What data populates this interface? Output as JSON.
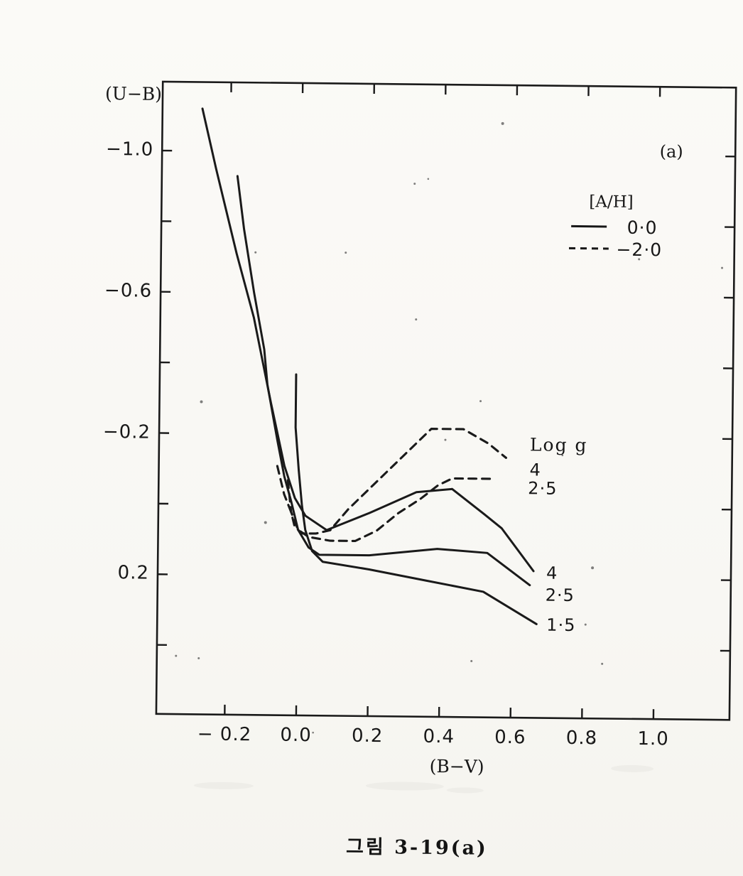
{
  "page": {
    "background": "#f8f7f3",
    "caption": "그림 3-19(a)"
  },
  "chart_data": {
    "type": "line",
    "description": "Scanned two-color diagram: (U-B) versus (B-V) model colors for metallicities [A/H]=0.0 (solid) and [A/H]=-2.0 (dashed) at surface gravities Log g = 4, 2.5, 1.5",
    "panel_label": "(a)",
    "colors": {
      "ink": "#1a1a1a",
      "paper": "#f8f7f3"
    },
    "x_axis": {
      "label": "(B−V)",
      "range": [
        -0.4,
        1.21
      ],
      "ticks": [
        {
          "value": -0.2,
          "label": "− 0.2"
        },
        {
          "value": 0.0,
          "label": "0.0"
        },
        {
          "value": 0.2,
          "label": "0.2"
        },
        {
          "value": 0.4,
          "label": "0.4"
        },
        {
          "value": 0.6,
          "label": "0.6"
        },
        {
          "value": 0.8,
          "label": "0.8"
        },
        {
          "value": 1.0,
          "label": "1.0"
        }
      ]
    },
    "y_axis": {
      "label": "(U−B)",
      "range": [
        -1.19,
        0.6
      ],
      "orientation": "negative-up",
      "ticks": [
        {
          "value": -1.0,
          "label": "−1.0"
        },
        {
          "value": -0.8,
          "label": ""
        },
        {
          "value": -0.6,
          "label": "−0.6"
        },
        {
          "value": -0.4,
          "label": ""
        },
        {
          "value": -0.2,
          "label": "−0.2"
        },
        {
          "value": 0.0,
          "label": ""
        },
        {
          "value": 0.2,
          "label": "0.2"
        },
        {
          "value": 0.4,
          "label": ""
        }
      ]
    },
    "legend": {
      "title": "[A/H]",
      "entries": [
        {
          "style": "solid",
          "label": "0·0",
          "value": 0.0
        },
        {
          "style": "dashed",
          "label": "−2·0",
          "value": -2.0
        }
      ]
    },
    "curve_labels": {
      "group_title": "Log g",
      "dashed": [
        "4",
        "2·5"
      ],
      "solid": [
        "4",
        "2·5",
        "1·5"
      ]
    },
    "series": [
      {
        "name": "log g = 4, [A/H] = 0.0",
        "style": "solid",
        "log_g": 4,
        "a_h": 0.0,
        "points": [
          [
            -0.28,
            -1.12
          ],
          [
            -0.24,
            -0.95
          ],
          [
            -0.18,
            -0.71
          ],
          [
            -0.13,
            -0.53
          ],
          [
            -0.08,
            -0.29
          ],
          [
            -0.04,
            -0.11
          ],
          [
            -0.01,
            -0.02
          ],
          [
            0.02,
            0.03
          ],
          [
            0.08,
            0.07
          ],
          [
            0.2,
            0.02
          ],
          [
            0.33,
            -0.04
          ],
          [
            0.43,
            -0.05
          ],
          [
            0.52,
            0.02
          ],
          [
            0.57,
            0.06
          ],
          [
            0.66,
            0.18
          ]
        ]
      },
      {
        "name": "log g = 2.5, [A/H] = 0.0",
        "style": "solid",
        "log_g": 2.5,
        "a_h": 0.0,
        "points": [
          [
            -0.18,
            -0.93
          ],
          [
            -0.16,
            -0.78
          ],
          [
            -0.13,
            -0.6
          ],
          [
            -0.1,
            -0.44
          ],
          [
            -0.09,
            -0.34
          ],
          [
            -0.06,
            -0.18
          ],
          [
            -0.04,
            -0.08
          ],
          [
            -0.02,
            -0.01
          ],
          [
            0.0,
            0.07
          ],
          [
            0.03,
            0.12
          ],
          [
            0.06,
            0.14
          ],
          [
            0.2,
            0.14
          ],
          [
            0.39,
            0.12
          ],
          [
            0.53,
            0.13
          ],
          [
            0.65,
            0.22
          ]
        ]
      },
      {
        "name": "log g = 1.5, [A/H] = 0.0",
        "style": "solid",
        "log_g": 1.5,
        "a_h": 0.0,
        "points": [
          [
            -0.01,
            -0.37
          ],
          [
            -0.01,
            -0.22
          ],
          [
            0.0,
            -0.1
          ],
          [
            0.01,
            0.0
          ],
          [
            0.02,
            0.07
          ],
          [
            0.04,
            0.13
          ],
          [
            0.07,
            0.16
          ],
          [
            0.2,
            0.18
          ],
          [
            0.36,
            0.21
          ],
          [
            0.52,
            0.24
          ],
          [
            0.67,
            0.33
          ]
        ]
      },
      {
        "name": "log g = 4, [A/H] = -2.0",
        "style": "dashed",
        "log_g": 4,
        "a_h": -2.0,
        "points": [
          [
            -0.06,
            -0.11
          ],
          [
            -0.04,
            -0.03
          ],
          [
            -0.02,
            0.02
          ],
          [
            -0.01,
            0.06
          ],
          [
            0.01,
            0.08
          ],
          [
            0.05,
            0.08
          ],
          [
            0.09,
            0.07
          ],
          [
            0.14,
            0.01
          ],
          [
            0.21,
            -0.06
          ],
          [
            0.29,
            -0.14
          ],
          [
            0.37,
            -0.22
          ],
          [
            0.46,
            -0.22
          ],
          [
            0.53,
            -0.18
          ],
          [
            0.58,
            -0.14
          ]
        ]
      },
      {
        "name": "log g = 2.5, [A/H] = -2.0",
        "style": "dashed",
        "log_g": 2.5,
        "a_h": -2.0,
        "points": [
          [
            -0.03,
            -0.07
          ],
          [
            -0.02,
            0.02
          ],
          [
            0.0,
            0.07
          ],
          [
            0.03,
            0.09
          ],
          [
            0.09,
            0.1
          ],
          [
            0.16,
            0.1
          ],
          [
            0.22,
            0.07
          ],
          [
            0.28,
            0.02
          ],
          [
            0.34,
            -0.02
          ],
          [
            0.39,
            -0.06
          ],
          [
            0.43,
            -0.08
          ],
          [
            0.49,
            -0.08
          ],
          [
            0.55,
            -0.08
          ]
        ]
      }
    ]
  }
}
